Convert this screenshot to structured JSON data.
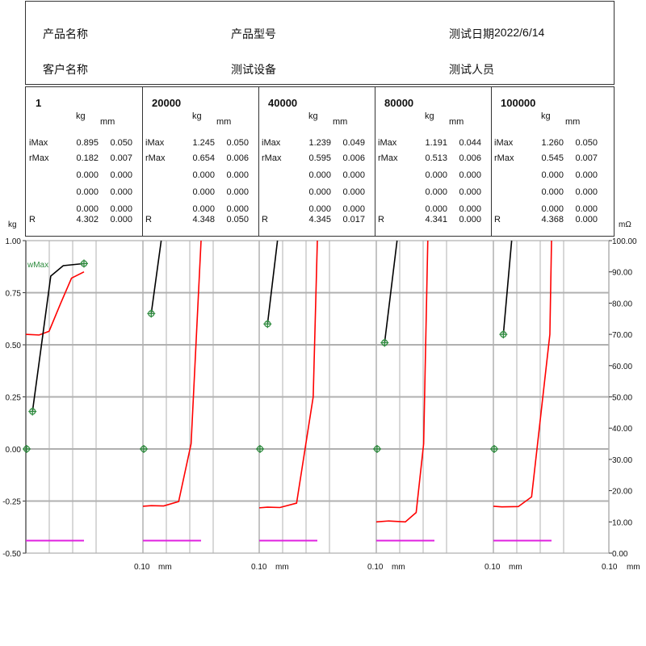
{
  "header": {
    "product_name_label": "产品名称",
    "product_model_label": "产品型号",
    "test_date_label": "测试日期",
    "test_date_value": "2022/6/14",
    "customer_name_label": "客户名称",
    "test_equipment_label": "测试设备",
    "tester_label": "测试人员"
  },
  "table_labels": {
    "kg": "kg",
    "mm": "mm",
    "imax": "iMax",
    "rmax": "rMax",
    "r": "R"
  },
  "columns": [
    {
      "title": "1",
      "imax": [
        "0.895",
        "0.050"
      ],
      "rmax": [
        "0.182",
        "0.007"
      ],
      "zeros": [
        [
          "0.000",
          "0.000"
        ],
        [
          "0.000",
          "0.000"
        ],
        [
          "0.000",
          "0.000"
        ]
      ],
      "r": [
        "4.302",
        "0.000"
      ]
    },
    {
      "title": "20000",
      "imax": [
        "1.245",
        "0.050"
      ],
      "rmax": [
        "0.654",
        "0.006"
      ],
      "zeros": [
        [
          "0.000",
          "0.000"
        ],
        [
          "0.000",
          "0.000"
        ],
        [
          "0.000",
          "0.000"
        ]
      ],
      "r": [
        "4.348",
        "0.050"
      ]
    },
    {
      "title": "40000",
      "imax": [
        "1.239",
        "0.049"
      ],
      "rmax": [
        "0.595",
        "0.006"
      ],
      "zeros": [
        [
          "0.000",
          "0.000"
        ],
        [
          "0.000",
          "0.000"
        ],
        [
          "0.000",
          "0.000"
        ]
      ],
      "r": [
        "4.345",
        "0.017"
      ]
    },
    {
      "title": "80000",
      "imax": [
        "1.191",
        "0.044"
      ],
      "rmax": [
        "0.513",
        "0.006"
      ],
      "zeros": [
        [
          "0.000",
          "0.000"
        ],
        [
          "0.000",
          "0.000"
        ],
        [
          "0.000",
          "0.000"
        ]
      ],
      "r": [
        "4.341",
        "0.000"
      ]
    },
    {
      "title": "100000",
      "imax": [
        "1.260",
        "0.050"
      ],
      "rmax": [
        "0.545",
        "0.007"
      ],
      "zeros": [
        [
          "0.000",
          "0.000"
        ],
        [
          "0.000",
          "0.000"
        ],
        [
          "0.000",
          "0.000"
        ]
      ],
      "r": [
        "4.368",
        "0.000"
      ]
    }
  ],
  "chart_data": {
    "type": "line",
    "left_axis": {
      "unit": "kg",
      "range": [
        -0.5,
        1.0
      ],
      "ticks": [
        "1.00",
        "0.75",
        "0.50",
        "0.25",
        "0.00",
        "-0.25",
        "-0.50"
      ]
    },
    "right_axis": {
      "unit": "mΩ",
      "range": [
        0,
        100
      ],
      "ticks": [
        "100.00",
        "90.00",
        "80.00",
        "70.00",
        "60.00",
        "50.00",
        "40.00",
        "30.00",
        "20.00",
        "10.00",
        "0.00"
      ]
    },
    "x_axis": {
      "unit": "mm",
      "tick_label": "0.10",
      "range": [
        0,
        0.1
      ],
      "panel_ticks": [
        "0.10",
        "0.10",
        "0.10",
        "0.10",
        "0.10"
      ]
    },
    "annotation": "wMax",
    "colors": {
      "force": "#000000",
      "resistance": "#ff0000",
      "marker": "#2e8b3e",
      "baseline": "#e020e0",
      "grid": "#b0b0b0"
    },
    "panels": [
      {
        "name": "1",
        "force": [
          [
            0.008,
            0.18
          ],
          [
            0.03,
            0.83
          ],
          [
            0.045,
            0.88
          ],
          [
            0.07,
            0.89
          ]
        ],
        "resistance": [
          [
            0.0,
            70.0
          ],
          [
            0.016,
            69.8
          ],
          [
            0.028,
            71.0
          ],
          [
            0.042,
            80.0
          ],
          [
            0.055,
            88.0
          ],
          [
            0.07,
            90.0
          ]
        ],
        "force_markers": [
          [
            0.008,
            0.18
          ],
          [
            0.07,
            0.89
          ]
        ],
        "zero_marker": [
          0.0,
          0.0
        ],
        "baseline": [
          0.0,
          0.07,
          4.0
        ]
      },
      {
        "name": "20000",
        "force": [
          [
            0.01,
            0.65
          ],
          [
            0.022,
            1.0
          ]
        ],
        "resistance": [
          [
            0.0,
            15.0
          ],
          [
            0.01,
            15.2
          ],
          [
            0.025,
            15.1
          ],
          [
            0.043,
            16.5
          ],
          [
            0.058,
            35.0
          ],
          [
            0.07,
            100.0
          ]
        ],
        "force_markers": [
          [
            0.01,
            0.65
          ]
        ],
        "zero_marker": [
          0.0,
          0.0
        ],
        "baseline": [
          0.0,
          0.07,
          4.0
        ]
      },
      {
        "name": "40000",
        "force": [
          [
            0.01,
            0.6
          ],
          [
            0.022,
            1.0
          ]
        ],
        "resistance": [
          [
            0.0,
            14.5
          ],
          [
            0.01,
            14.7
          ],
          [
            0.025,
            14.6
          ],
          [
            0.045,
            16.0
          ],
          [
            0.065,
            50.0
          ],
          [
            0.07,
            100.0
          ]
        ],
        "force_markers": [
          [
            0.01,
            0.6
          ]
        ],
        "zero_marker": [
          0.0,
          0.0
        ],
        "baseline": [
          0.0,
          0.07,
          4.0
        ]
      },
      {
        "name": "80000",
        "force": [
          [
            0.01,
            0.51
          ],
          [
            0.025,
            1.0
          ]
        ],
        "resistance": [
          [
            0.0,
            10.0
          ],
          [
            0.015,
            10.3
          ],
          [
            0.035,
            10.0
          ],
          [
            0.048,
            13.0
          ],
          [
            0.057,
            35.0
          ],
          [
            0.062,
            100.0
          ]
        ],
        "force_markers": [
          [
            0.01,
            0.51
          ]
        ],
        "zero_marker": [
          0.0,
          0.0
        ],
        "baseline": [
          0.0,
          0.07,
          4.0
        ]
      },
      {
        "name": "100000",
        "force": [
          [
            0.012,
            0.55
          ],
          [
            0.022,
            1.0
          ]
        ],
        "resistance": [
          [
            0.0,
            15.0
          ],
          [
            0.01,
            14.8
          ],
          [
            0.03,
            14.9
          ],
          [
            0.046,
            18.0
          ],
          [
            0.068,
            70.0
          ],
          [
            0.07,
            100.0
          ]
        ],
        "force_markers": [
          [
            0.012,
            0.55
          ]
        ],
        "zero_marker": [
          0.0,
          0.0
        ],
        "baseline": [
          0.0,
          0.07,
          4.0
        ]
      }
    ]
  }
}
